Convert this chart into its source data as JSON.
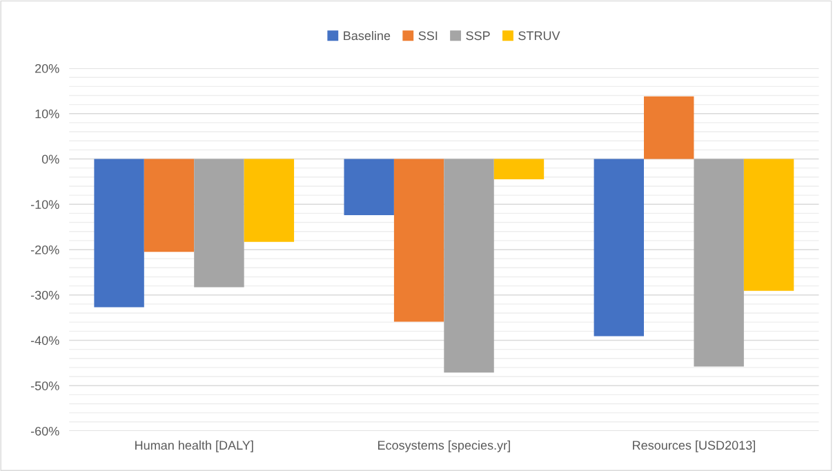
{
  "chart_data": {
    "type": "bar",
    "categories": [
      "Human health [DALY]",
      "Ecosystems [species.yr]",
      "Resources [USD2013]"
    ],
    "series": [
      {
        "name": "Baseline",
        "color": "#4472c4",
        "values": [
          -32.7,
          -12.4,
          -39.1
        ]
      },
      {
        "name": "SSI",
        "color": "#ed7d31",
        "values": [
          -20.5,
          -35.9,
          13.8
        ]
      },
      {
        "name": "SSP",
        "color": "#a5a5a5",
        "values": [
          -28.3,
          -47.1,
          -45.8
        ]
      },
      {
        "name": "STRUV",
        "color": "#ffc000",
        "values": [
          -18.3,
          -4.5,
          -29.1
        ]
      }
    ],
    "ylim": [
      -60,
      20
    ],
    "yticks": [
      {
        "value": -60,
        "label": "-60%"
      },
      {
        "value": -58,
        "label": null
      },
      {
        "value": -56,
        "label": null
      },
      {
        "value": -54,
        "label": null
      },
      {
        "value": -52,
        "label": null
      },
      {
        "value": -50,
        "label": "-50%"
      },
      {
        "value": -48,
        "label": null
      },
      {
        "value": -46,
        "label": null
      },
      {
        "value": -44,
        "label": null
      },
      {
        "value": -42,
        "label": null
      },
      {
        "value": -40,
        "label": "-40%"
      },
      {
        "value": -38,
        "label": null
      },
      {
        "value": -36,
        "label": null
      },
      {
        "value": -34,
        "label": null
      },
      {
        "value": -32,
        "label": null
      },
      {
        "value": -30,
        "label": "-30%"
      },
      {
        "value": -28,
        "label": null
      },
      {
        "value": -26,
        "label": null
      },
      {
        "value": -24,
        "label": null
      },
      {
        "value": -22,
        "label": null
      },
      {
        "value": -20,
        "label": "-20%"
      },
      {
        "value": -18,
        "label": null
      },
      {
        "value": -16,
        "label": null
      },
      {
        "value": -14,
        "label": null
      },
      {
        "value": -12,
        "label": null
      },
      {
        "value": -10,
        "label": "-10%"
      },
      {
        "value": -8,
        "label": null
      },
      {
        "value": -6,
        "label": null
      },
      {
        "value": -4,
        "label": null
      },
      {
        "value": -2,
        "label": null
      },
      {
        "value": 0,
        "label": "0%"
      },
      {
        "value": 2,
        "label": null
      },
      {
        "value": 4,
        "label": null
      },
      {
        "value": 6,
        "label": null
      },
      {
        "value": 8,
        "label": null
      },
      {
        "value": 10,
        "label": "10%"
      },
      {
        "value": 12,
        "label": null
      },
      {
        "value": 14,
        "label": null
      },
      {
        "value": 16,
        "label": null
      },
      {
        "value": 18,
        "label": null
      },
      {
        "value": 20,
        "label": "20%"
      }
    ],
    "grid": "y",
    "legend": "top"
  }
}
